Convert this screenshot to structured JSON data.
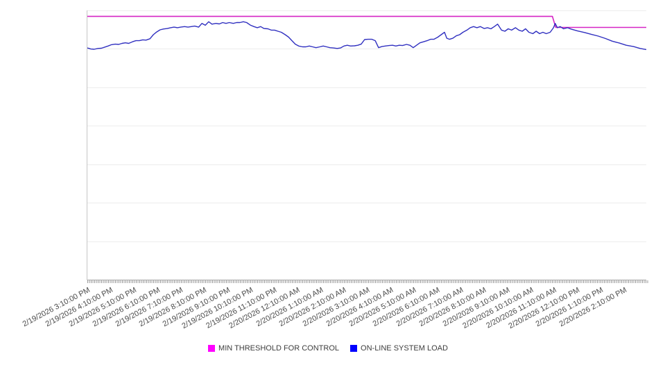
{
  "chart_data": {
    "type": "line",
    "title": "",
    "legend_position": "bottom-center",
    "x_axis": {
      "tick_labels": [
        "2/19/2026 3:10:00 PM",
        "2/19/2026 4:10:00 PM",
        "2/19/2026 5:10:00 PM",
        "2/19/2026 6:10:00 PM",
        "2/19/2026 7:10:00 PM",
        "2/19/2026 8:10:00 PM",
        "2/19/2026 9:10:00 PM",
        "2/19/2026 10:10:00 PM",
        "2/19/2026 11:10:00 PM",
        "2/20/2026 12:10:00 AM",
        "2/20/2026 1:10:00 AM",
        "2/20/2026 2:10:00 AM",
        "2/20/2026 3:10:00 AM",
        "2/20/2026 4:10:00 AM",
        "2/20/2026 5:10:00 AM",
        "2/20/2026 6:10:00 AM",
        "2/20/2026 7:10:00 AM",
        "2/20/2026 8:10:00 AM",
        "2/20/2026 9:10:00 AM",
        "2/20/2026 10:10:00 AM",
        "2/20/2026 11:10:00 AM",
        "2/20/2026 12:10:00 PM",
        "2/20/2026 1:10:00 PM",
        "2/20/2026 2:10:00 PM"
      ],
      "minor_ticks_visible": true
    },
    "y_axis": {
      "tick_labels_visible": false,
      "estimated_unit": "percent of plot height (axis unlabeled)",
      "range": [
        0,
        100
      ],
      "gridline_count": 8
    },
    "series": [
      {
        "name": "MIN THRESHOLD FOR CONTROL",
        "line_color": "#d524c4",
        "legend_color": "#ff00ff",
        "points": [
          [
            0,
            97.8
          ],
          [
            0.832,
            97.8
          ],
          [
            0.838,
            93.7
          ],
          [
            1,
            93.7
          ]
        ]
      },
      {
        "name": "ON-LINE SYSTEM LOAD",
        "line_color": "#3030c0",
        "legend_color": "#0000ff",
        "points": [
          [
            0,
            86.1
          ],
          [
            0.006,
            85.7
          ],
          [
            0.012,
            85.6
          ],
          [
            0.019,
            85.9
          ],
          [
            0.025,
            86
          ],
          [
            0.031,
            86.4
          ],
          [
            0.037,
            86.8
          ],
          [
            0.043,
            87.3
          ],
          [
            0.05,
            87.5
          ],
          [
            0.056,
            87.4
          ],
          [
            0.062,
            87.8
          ],
          [
            0.068,
            88
          ],
          [
            0.074,
            87.8
          ],
          [
            0.081,
            88.4
          ],
          [
            0.087,
            88.8
          ],
          [
            0.093,
            88.8
          ],
          [
            0.099,
            89.1
          ],
          [
            0.105,
            89
          ],
          [
            0.112,
            89.5
          ],
          [
            0.118,
            91
          ],
          [
            0.124,
            92
          ],
          [
            0.13,
            92.8
          ],
          [
            0.136,
            93.1
          ],
          [
            0.143,
            93.3
          ],
          [
            0.149,
            93.6
          ],
          [
            0.155,
            93.8
          ],
          [
            0.161,
            93.6
          ],
          [
            0.167,
            93.8
          ],
          [
            0.174,
            94
          ],
          [
            0.18,
            93.8
          ],
          [
            0.186,
            94
          ],
          [
            0.192,
            94.2
          ],
          [
            0.199,
            93.8
          ],
          [
            0.205,
            95.2
          ],
          [
            0.211,
            94.5
          ],
          [
            0.217,
            95.8
          ],
          [
            0.223,
            94.9
          ],
          [
            0.23,
            95.2
          ],
          [
            0.236,
            95
          ],
          [
            0.242,
            95.5
          ],
          [
            0.248,
            95.2
          ],
          [
            0.254,
            95.5
          ],
          [
            0.261,
            95.2
          ],
          [
            0.267,
            95.5
          ],
          [
            0.273,
            95.5
          ],
          [
            0.279,
            95.8
          ],
          [
            0.285,
            95.5
          ],
          [
            0.292,
            94.5
          ],
          [
            0.298,
            94
          ],
          [
            0.304,
            93.6
          ],
          [
            0.31,
            94
          ],
          [
            0.316,
            93.3
          ],
          [
            0.323,
            93.2
          ],
          [
            0.329,
            92.7
          ],
          [
            0.335,
            92.7
          ],
          [
            0.341,
            92.3
          ],
          [
            0.347,
            91.9
          ],
          [
            0.354,
            91
          ],
          [
            0.36,
            90.1
          ],
          [
            0.366,
            88.8
          ],
          [
            0.372,
            87.5
          ],
          [
            0.378,
            86.8
          ],
          [
            0.385,
            86.5
          ],
          [
            0.391,
            86.5
          ],
          [
            0.397,
            86.8
          ],
          [
            0.403,
            86.5
          ],
          [
            0.409,
            86.2
          ],
          [
            0.416,
            86.5
          ],
          [
            0.422,
            86.8
          ],
          [
            0.428,
            86.5
          ],
          [
            0.434,
            86.2
          ],
          [
            0.44,
            86.1
          ],
          [
            0.447,
            85.9
          ],
          [
            0.453,
            86.1
          ],
          [
            0.459,
            86.8
          ],
          [
            0.465,
            87.1
          ],
          [
            0.471,
            86.8
          ],
          [
            0.478,
            86.9
          ],
          [
            0.484,
            87.1
          ],
          [
            0.49,
            87.5
          ],
          [
            0.496,
            89.2
          ],
          [
            0.502,
            89.3
          ],
          [
            0.509,
            89.3
          ],
          [
            0.515,
            88.8
          ],
          [
            0.521,
            86.2
          ],
          [
            0.527,
            86.6
          ],
          [
            0.533,
            86.8
          ],
          [
            0.54,
            87
          ],
          [
            0.546,
            87.1
          ],
          [
            0.552,
            86.8
          ],
          [
            0.558,
            87.1
          ],
          [
            0.564,
            87
          ],
          [
            0.571,
            87.4
          ],
          [
            0.577,
            87.1
          ],
          [
            0.583,
            86.2
          ],
          [
            0.589,
            87.1
          ],
          [
            0.595,
            88
          ],
          [
            0.602,
            88.4
          ],
          [
            0.608,
            88.8
          ],
          [
            0.614,
            89.3
          ],
          [
            0.62,
            89.3
          ],
          [
            0.627,
            90.1
          ],
          [
            0.633,
            91
          ],
          [
            0.639,
            91.9
          ],
          [
            0.643,
            89.7
          ],
          [
            0.648,
            89.3
          ],
          [
            0.654,
            89.7
          ],
          [
            0.66,
            90.6
          ],
          [
            0.666,
            91
          ],
          [
            0.672,
            91.9
          ],
          [
            0.679,
            92.7
          ],
          [
            0.685,
            93.6
          ],
          [
            0.691,
            94
          ],
          [
            0.697,
            93.6
          ],
          [
            0.703,
            94
          ],
          [
            0.71,
            93.3
          ],
          [
            0.716,
            93.6
          ],
          [
            0.722,
            93.2
          ],
          [
            0.728,
            94
          ],
          [
            0.734,
            94.9
          ],
          [
            0.741,
            92.7
          ],
          [
            0.747,
            92.3
          ],
          [
            0.753,
            93.2
          ],
          [
            0.759,
            92.7
          ],
          [
            0.766,
            93.6
          ],
          [
            0.772,
            92.7
          ],
          [
            0.778,
            92.3
          ],
          [
            0.784,
            93.2
          ],
          [
            0.79,
            91.9
          ],
          [
            0.797,
            91.4
          ],
          [
            0.803,
            92.3
          ],
          [
            0.809,
            91.4
          ],
          [
            0.815,
            91.9
          ],
          [
            0.821,
            91.4
          ],
          [
            0.828,
            91.9
          ],
          [
            0.834,
            93.6
          ],
          [
            0.837,
            95.2
          ],
          [
            0.841,
            93.6
          ],
          [
            0.846,
            94
          ],
          [
            0.852,
            93.2
          ],
          [
            0.859,
            93.6
          ],
          [
            0.865,
            93.1
          ],
          [
            0.877,
            92.4
          ],
          [
            0.89,
            91.8
          ],
          [
            0.902,
            91.1
          ],
          [
            0.914,
            90.5
          ],
          [
            0.927,
            89.6
          ],
          [
            0.939,
            88.6
          ],
          [
            0.952,
            87.9
          ],
          [
            0.964,
            87.1
          ],
          [
            0.977,
            86.6
          ],
          [
            0.989,
            85.9
          ],
          [
            1,
            85.5
          ]
        ]
      }
    ]
  },
  "legend": {
    "items": [
      {
        "label": "MIN THRESHOLD FOR CONTROL",
        "color": "#ff00ff"
      },
      {
        "label": "ON-LINE SYSTEM LOAD",
        "color": "#0000ff"
      }
    ]
  }
}
